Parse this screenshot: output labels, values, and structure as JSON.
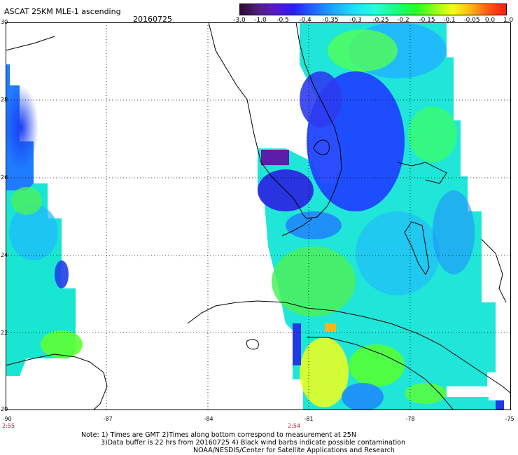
{
  "header": {
    "title": "ASCAT 25KM MLE-1 ascending",
    "date": "20160725"
  },
  "colorbar": {
    "ticks": [
      "-3.0",
      "-1.0",
      "-0.5",
      "-0.4",
      "-0.35",
      "-0.3",
      "-0.25",
      "-0.2",
      "-0.15",
      "-0.1",
      "-0.05",
      "0.0",
      "1.0"
    ]
  },
  "map": {
    "lat_labels": [
      "30",
      "28",
      "26",
      "24",
      "22",
      "20"
    ],
    "lon_labels": [
      "-90",
      "-87",
      "-84",
      "-81",
      "-78",
      "-75"
    ],
    "time_labels": [
      {
        "label": "2:55",
        "lon": -90
      },
      {
        "label": "2:54",
        "lon": -81
      }
    ],
    "lat_range": [
      20,
      30
    ],
    "lon_range": [
      -90,
      -75
    ],
    "grid": "dotted"
  },
  "footer": {
    "note1": "Note: 1) Times are GMT 2)Times along bottom correspond to measurement at 25N",
    "note2": "3)Data buffer is 22 hrs from 20160725 4) Black wind barbs indicate possible contamination",
    "credit": "NOAA/NESDIS/Center for Satellite Applications and Research"
  }
}
